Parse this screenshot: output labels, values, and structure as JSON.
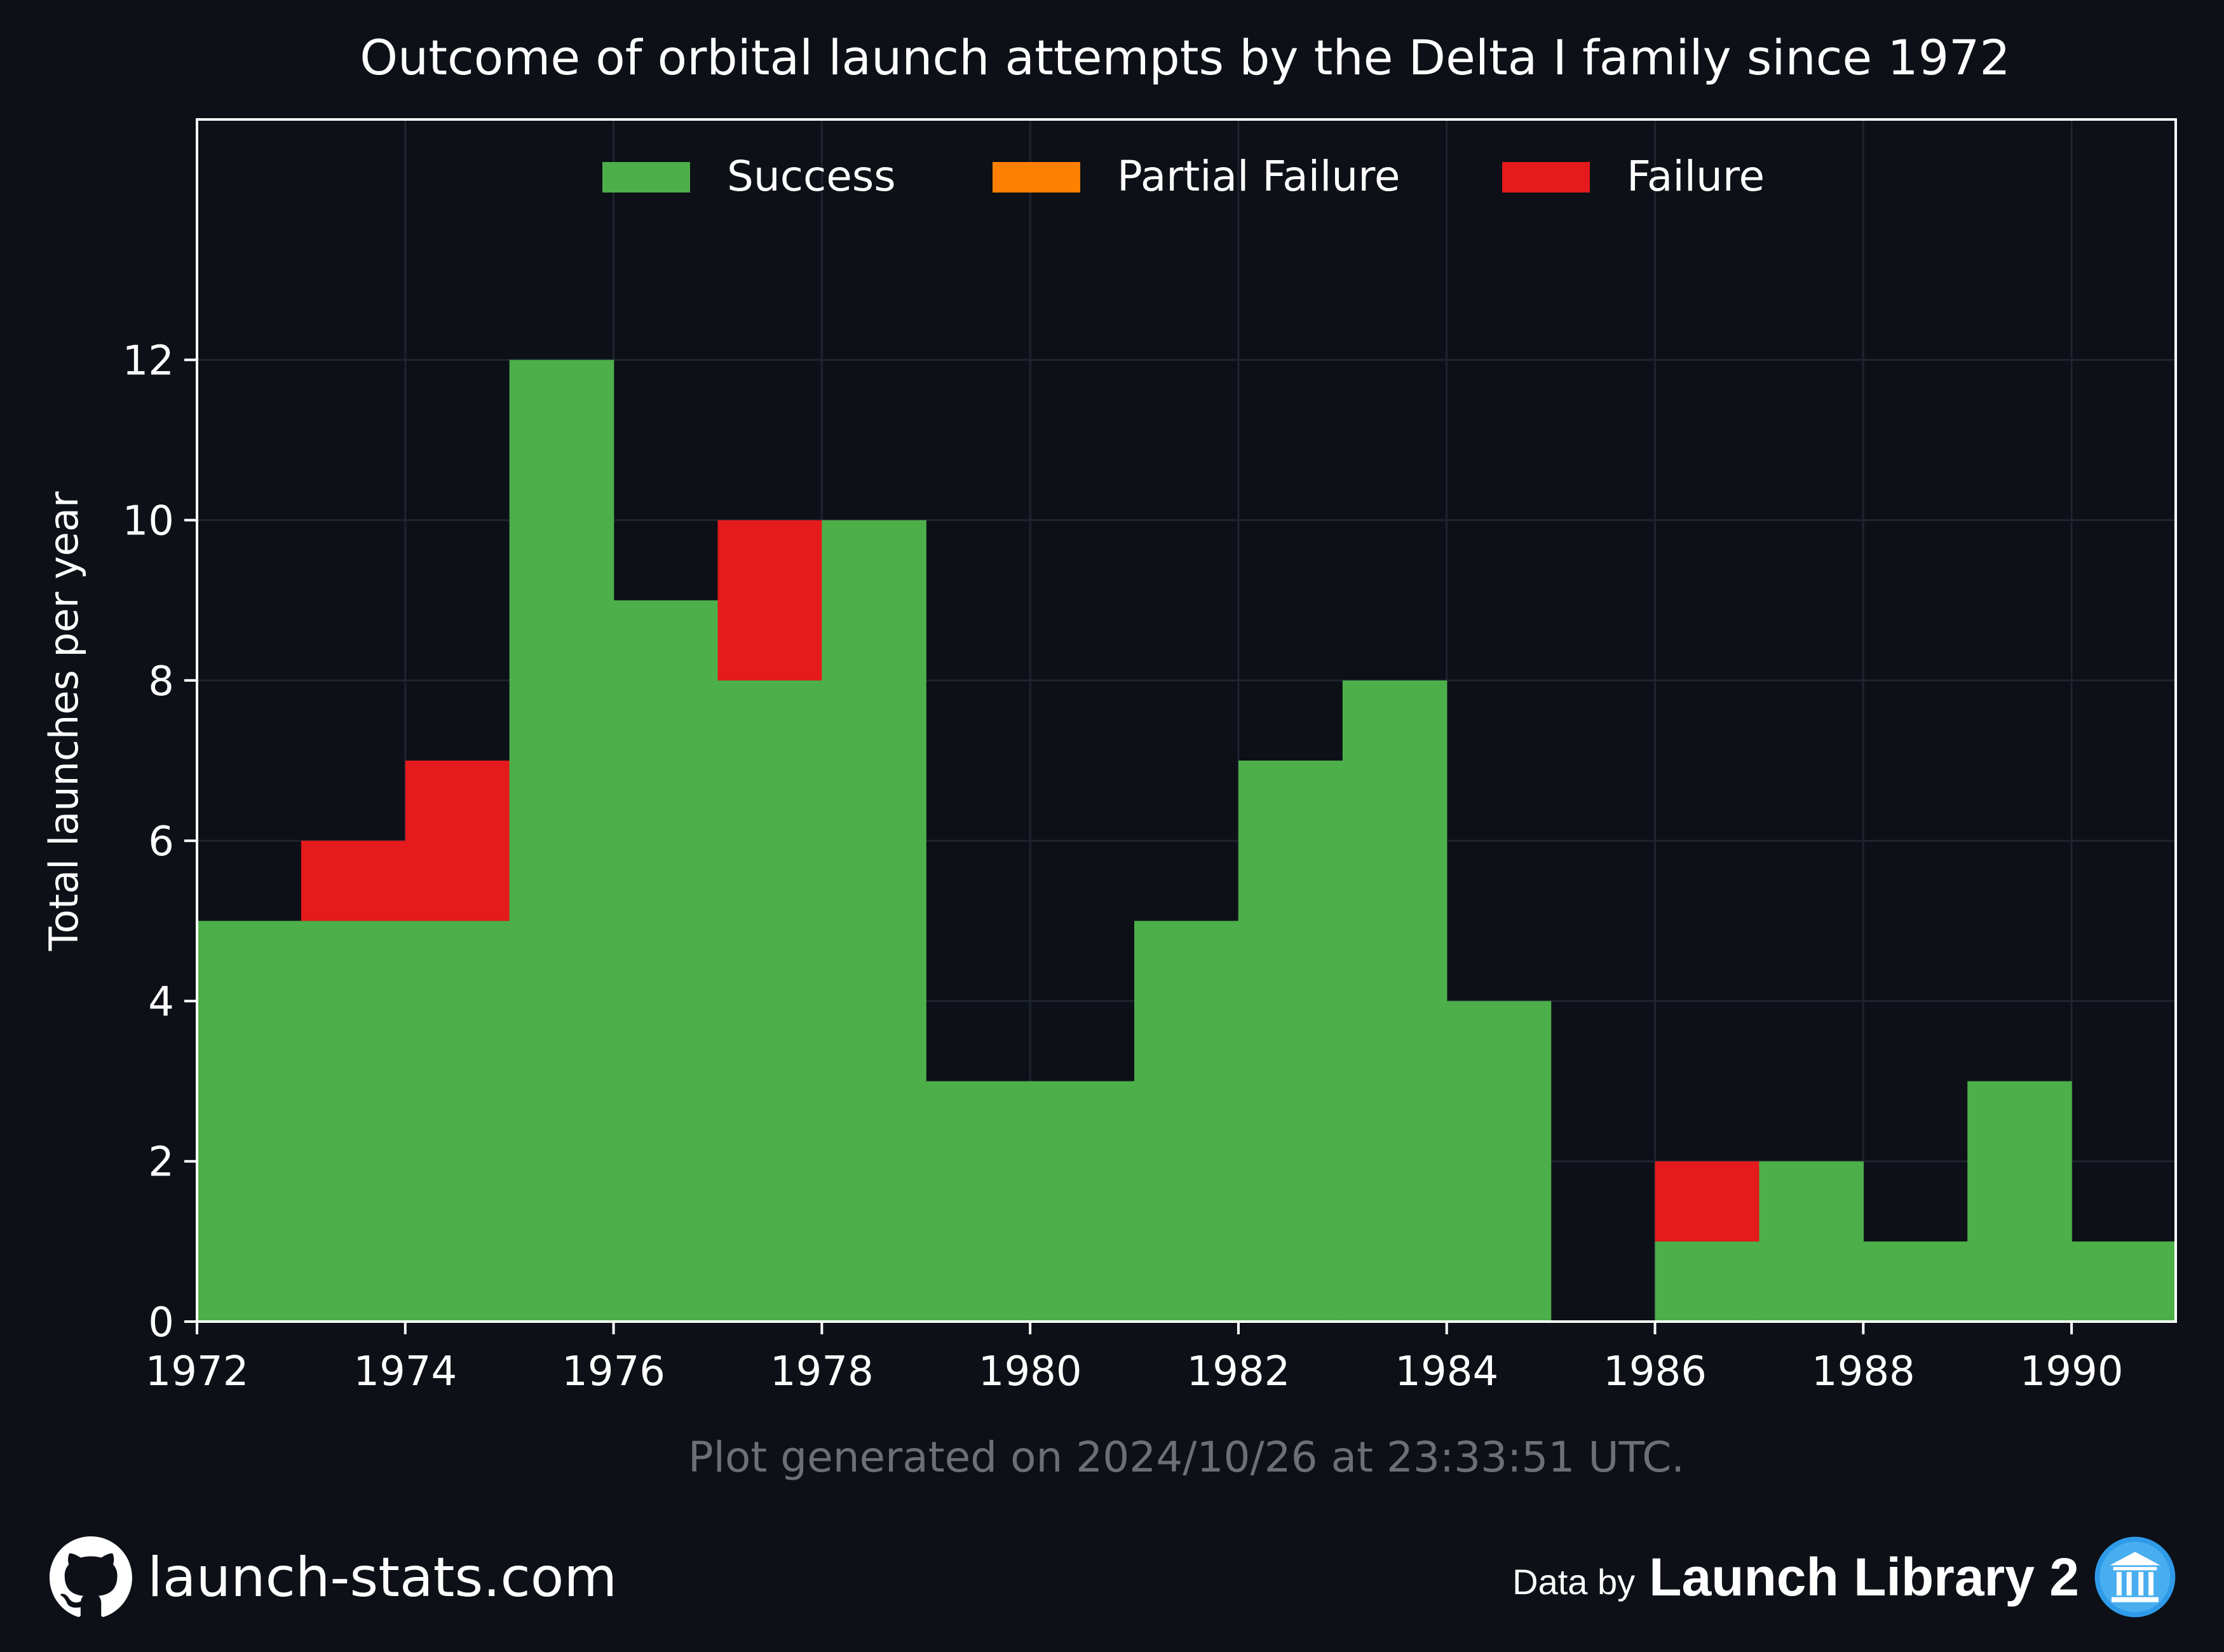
{
  "chart_data": {
    "type": "bar",
    "stacked": true,
    "title": "Outcome of orbital launch attempts by the Delta I family since 1972",
    "ylabel": "Total launches per year",
    "xlabel": "",
    "x": [
      1972,
      1973,
      1974,
      1975,
      1976,
      1977,
      1978,
      1979,
      1980,
      1981,
      1982,
      1983,
      1984,
      1985,
      1986,
      1987,
      1988,
      1989,
      1990
    ],
    "series": [
      {
        "name": "Success",
        "color": "#4daf4a",
        "values": [
          5,
          5,
          5,
          12,
          9,
          8,
          10,
          3,
          3,
          5,
          7,
          8,
          4,
          0,
          1,
          2,
          1,
          3,
          1
        ]
      },
      {
        "name": "Partial Failure",
        "color": "#ff7f00",
        "values": [
          0,
          0,
          0,
          0,
          0,
          0,
          0,
          0,
          0,
          0,
          0,
          0,
          0,
          0,
          0,
          0,
          0,
          0,
          0
        ]
      },
      {
        "name": "Failure",
        "color": "#e41a1c",
        "values": [
          0,
          1,
          2,
          0,
          0,
          2,
          0,
          0,
          0,
          0,
          0,
          0,
          0,
          0,
          1,
          0,
          0,
          0,
          0
        ]
      }
    ],
    "xlim": [
      1972,
      1991
    ],
    "ylim": [
      0,
      15
    ],
    "xticks": [
      1972,
      1974,
      1976,
      1978,
      1980,
      1982,
      1984,
      1986,
      1988,
      1990
    ],
    "yticks": [
      0,
      2,
      4,
      6,
      8,
      10,
      12
    ],
    "grid": true,
    "legend": "top-center"
  },
  "footer": {
    "generated": "Plot generated on 2024/10/26 at 23:33:51 UTC.",
    "site": "launch-stats.com",
    "data_by": "Data by",
    "source": "Launch Library 2"
  },
  "icons": {
    "site": "github-icon",
    "source": "launch-library-icon"
  },
  "colors": {
    "background": "#0d1017",
    "grid": "#1e2430",
    "axis": "#ffffff",
    "muted_text": "#6b6f76"
  }
}
